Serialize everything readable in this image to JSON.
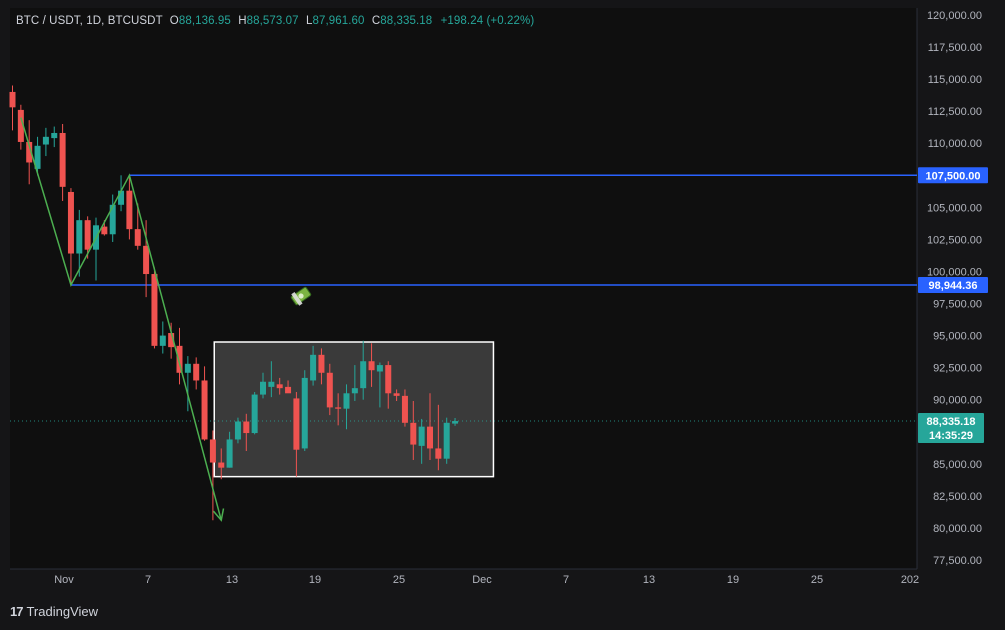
{
  "legend": {
    "symbol": "BTC / USDT, 1D, BTCUSDT",
    "open_label": "O",
    "open": "88,136.95",
    "high_label": "H",
    "high": "88,573.07",
    "low_label": "L",
    "low": "87,961.60",
    "close_label": "C",
    "close": "88,335.18",
    "change": "+198.24 (+0.22%)"
  },
  "branding": {
    "logo": "17",
    "name": "TradingView"
  },
  "price_axis_labels": [
    "120,000.00",
    "117,500.00",
    "115,000.00",
    "112,500.00",
    "110,000.00",
    "107,500.00",
    "105,000.00",
    "102,500.00",
    "100,000.00",
    "97,500.00",
    "95,000.00",
    "92,500.00",
    "90,000.00",
    "87,500.00",
    "85,000.00",
    "82,500.00",
    "80,000.00",
    "77,500.00"
  ],
  "time_axis_labels": [
    "Nov",
    "7",
    "13",
    "19",
    "25",
    "Dec",
    "7",
    "13",
    "19",
    "25",
    "202"
  ],
  "tags": {
    "level_high": "107,500.00",
    "level_low": "98,944.36",
    "last_price": "88,335.18",
    "countdown": "14:35:29"
  },
  "colors": {
    "up": "#26a69a",
    "down": "#ef5350",
    "level_line": "#2962ff",
    "trend_line": "#4caf50",
    "box_border": "#ffffff",
    "background": "#0f0f0f"
  },
  "icons": {
    "drawing_sticker": "money-bag-icon"
  },
  "chart_data": {
    "type": "candlestick",
    "title": "BTC / USDT, 1D, BTCUSDT",
    "xlabel": "",
    "ylabel": "",
    "ylim": [
      77500,
      120000
    ],
    "grid": false,
    "candles": [
      {
        "o": 114000,
        "h": 114500,
        "l": 111000,
        "c": 112800
      },
      {
        "o": 112600,
        "h": 113000,
        "l": 109500,
        "c": 110100
      },
      {
        "o": 110100,
        "h": 111800,
        "l": 106800,
        "c": 108500
      },
      {
        "o": 108000,
        "h": 110500,
        "l": 107500,
        "c": 109800
      },
      {
        "o": 109900,
        "h": 111200,
        "l": 109000,
        "c": 110500
      },
      {
        "o": 110400,
        "h": 111300,
        "l": 109700,
        "c": 110800
      },
      {
        "o": 110800,
        "h": 111500,
        "l": 105500,
        "c": 106600
      },
      {
        "o": 106200,
        "h": 106500,
        "l": 99000,
        "c": 101400
      },
      {
        "o": 101400,
        "h": 104800,
        "l": 99600,
        "c": 104000
      },
      {
        "o": 104000,
        "h": 104300,
        "l": 101000,
        "c": 101700
      },
      {
        "o": 101700,
        "h": 104200,
        "l": 99300,
        "c": 103600
      },
      {
        "o": 103500,
        "h": 104000,
        "l": 102800,
        "c": 102900
      },
      {
        "o": 102900,
        "h": 106000,
        "l": 102300,
        "c": 105200
      },
      {
        "o": 105200,
        "h": 107500,
        "l": 104700,
        "c": 106300
      },
      {
        "o": 106300,
        "h": 107500,
        "l": 102500,
        "c": 103300
      },
      {
        "o": 103300,
        "h": 105300,
        "l": 101700,
        "c": 102000
      },
      {
        "o": 102000,
        "h": 104000,
        "l": 98000,
        "c": 99800
      },
      {
        "o": 99800,
        "h": 100300,
        "l": 94000,
        "c": 94200
      },
      {
        "o": 94200,
        "h": 96100,
        "l": 93600,
        "c": 95000
      },
      {
        "o": 95200,
        "h": 96000,
        "l": 93200,
        "c": 94100
      },
      {
        "o": 94200,
        "h": 95600,
        "l": 91200,
        "c": 92100
      },
      {
        "o": 92100,
        "h": 93400,
        "l": 89100,
        "c": 92800
      },
      {
        "o": 92800,
        "h": 93300,
        "l": 90800,
        "c": 91500
      },
      {
        "o": 91500,
        "h": 92600,
        "l": 86800,
        "c": 86900
      },
      {
        "o": 86900,
        "h": 87600,
        "l": 80600,
        "c": 85100
      },
      {
        "o": 85100,
        "h": 86200,
        "l": 83800,
        "c": 84700
      },
      {
        "o": 84700,
        "h": 87500,
        "l": 84700,
        "c": 86900
      },
      {
        "o": 86900,
        "h": 88600,
        "l": 86600,
        "c": 88300
      },
      {
        "o": 88300,
        "h": 88900,
        "l": 86000,
        "c": 87400
      },
      {
        "o": 87400,
        "h": 90600,
        "l": 87300,
        "c": 90400
      },
      {
        "o": 90400,
        "h": 92100,
        "l": 90100,
        "c": 91400
      },
      {
        "o": 91000,
        "h": 93000,
        "l": 90200,
        "c": 91400
      },
      {
        "o": 91200,
        "h": 91700,
        "l": 90400,
        "c": 90900
      },
      {
        "o": 91000,
        "h": 91500,
        "l": 90600,
        "c": 90500
      },
      {
        "o": 90100,
        "h": 90600,
        "l": 84000,
        "c": 86100
      },
      {
        "o": 86200,
        "h": 92300,
        "l": 86000,
        "c": 91700
      },
      {
        "o": 91500,
        "h": 94200,
        "l": 91100,
        "c": 93500
      },
      {
        "o": 93500,
        "h": 94000,
        "l": 91200,
        "c": 92100
      },
      {
        "o": 92100,
        "h": 92800,
        "l": 88800,
        "c": 89400
      },
      {
        "o": 89400,
        "h": 90500,
        "l": 88000,
        "c": 89300
      },
      {
        "o": 89300,
        "h": 91200,
        "l": 87700,
        "c": 90500
      },
      {
        "o": 90500,
        "h": 92700,
        "l": 89900,
        "c": 90900
      },
      {
        "o": 90900,
        "h": 94600,
        "l": 90000,
        "c": 93000
      },
      {
        "o": 93000,
        "h": 94400,
        "l": 91000,
        "c": 92300
      },
      {
        "o": 92200,
        "h": 92900,
        "l": 89400,
        "c": 92700
      },
      {
        "o": 92700,
        "h": 93000,
        "l": 89300,
        "c": 90500
      },
      {
        "o": 90500,
        "h": 90800,
        "l": 89900,
        "c": 90300
      },
      {
        "o": 90300,
        "h": 90800,
        "l": 87900,
        "c": 88200
      },
      {
        "o": 88200,
        "h": 89900,
        "l": 85300,
        "c": 86500
      },
      {
        "o": 86400,
        "h": 88500,
        "l": 85000,
        "c": 87900
      },
      {
        "o": 87900,
        "h": 90500,
        "l": 85300,
        "c": 86200
      },
      {
        "o": 86200,
        "h": 89600,
        "l": 84500,
        "c": 85400
      },
      {
        "o": 85400,
        "h": 88600,
        "l": 85000,
        "c": 88200
      },
      {
        "o": 88137,
        "h": 88573,
        "l": 87962,
        "c": 88335
      }
    ],
    "horizontal_lines": [
      107500,
      98944.36
    ],
    "trend_polyline": [
      {
        "i": 1,
        "p": 112000
      },
      {
        "i": 7,
        "p": 98944
      },
      {
        "i": 14,
        "p": 107500
      },
      {
        "i": 25,
        "p": 80600
      }
    ],
    "range_box": {
      "i_start": 25,
      "i_end": 57,
      "p_top": 94500,
      "p_bottom": 84000
    },
    "last_price": 88335.18
  }
}
